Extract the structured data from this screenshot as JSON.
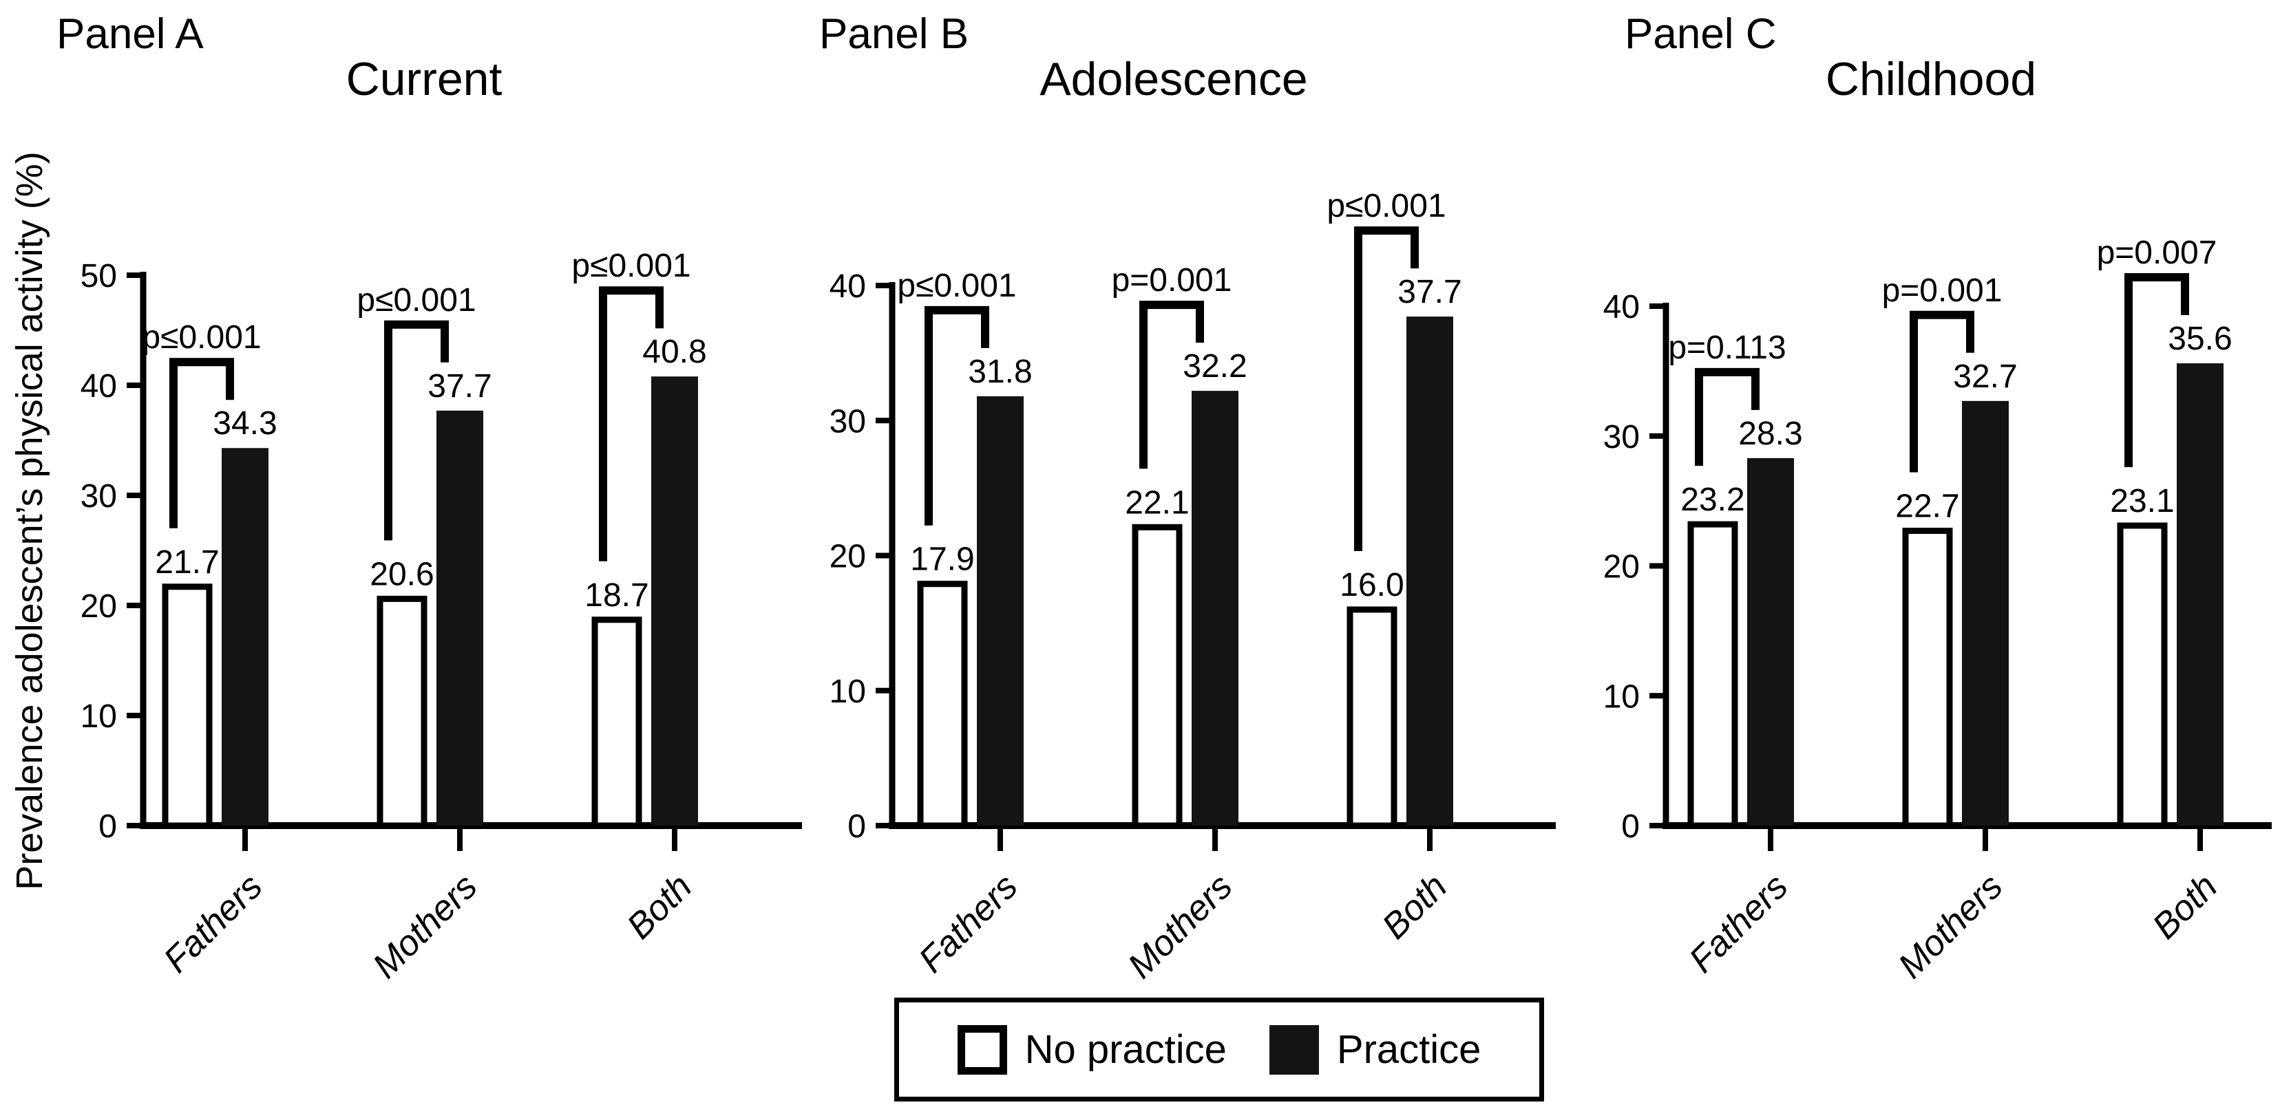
{
  "colors": {
    "ink": "#000000",
    "bar_fill": "#141414",
    "bar_empty_fill": "#ffffff",
    "background": "#ffffff"
  },
  "y_axis_label": "Prevalence adolescent’s physical activity (%)",
  "legend": {
    "no_practice_label": "No practice",
    "practice_label": "Practice"
  },
  "chart_data": [
    {
      "type": "bar",
      "panel_label": "Panel A",
      "title": "Current",
      "ylabel": "Prevalence adolescent’s physical activity (%)",
      "ylim": [
        0,
        50
      ],
      "yticks": [
        0,
        10,
        20,
        30,
        40,
        50
      ],
      "grid": false,
      "legend_position": "bottom-center-shared",
      "categories": [
        "Fathers",
        "Mothers",
        "Both"
      ],
      "series": [
        {
          "name": "No practice",
          "fill": "#ffffff",
          "values": [
            21.7,
            20.6,
            18.7
          ],
          "labels": [
            "21.7",
            "20.6",
            "18.7"
          ]
        },
        {
          "name": "Practice",
          "fill": "#141414",
          "values": [
            34.3,
            37.7,
            40.8
          ],
          "labels": [
            "34.3",
            "37.7",
            "40.8"
          ]
        }
      ],
      "p_values": [
        "p≤0.001",
        "p≤0.001",
        "p≤0.001"
      ]
    },
    {
      "type": "bar",
      "panel_label": "Panel B",
      "title": "Adolescence",
      "ylabel": "Prevalence adolescent’s physical activity (%)",
      "ylim": [
        0,
        40
      ],
      "yticks": [
        0,
        10,
        20,
        30,
        40
      ],
      "grid": false,
      "legend_position": "bottom-center-shared",
      "categories": [
        "Fathers",
        "Mothers",
        "Both"
      ],
      "series": [
        {
          "name": "No practice",
          "fill": "#ffffff",
          "values": [
            17.9,
            22.1,
            16.0
          ],
          "labels": [
            "17.9",
            "22.1",
            "16.0"
          ]
        },
        {
          "name": "Practice",
          "fill": "#141414",
          "values": [
            31.8,
            32.2,
            37.7
          ],
          "labels": [
            "31.8",
            "32.2",
            "37.7"
          ]
        }
      ],
      "p_values": [
        "p≤0.001",
        "p=0.001",
        "p≤0.001"
      ]
    },
    {
      "type": "bar",
      "panel_label": "Panel C",
      "title": "Childhood",
      "ylabel": "Prevalence adolescent’s physical activity (%)",
      "ylim": [
        0,
        40
      ],
      "yticks": [
        0,
        10,
        20,
        30,
        40
      ],
      "grid": false,
      "legend_position": "bottom-center-shared",
      "categories": [
        "Fathers",
        "Mothers",
        "Both"
      ],
      "series": [
        {
          "name": "No practice",
          "fill": "#ffffff",
          "values": [
            23.2,
            22.7,
            23.1
          ],
          "labels": [
            "23.2",
            "22.7",
            "23.1"
          ]
        },
        {
          "name": "Practice",
          "fill": "#141414",
          "values": [
            28.3,
            32.7,
            35.6
          ],
          "labels": [
            "28.3",
            "32.7",
            "35.6"
          ]
        }
      ],
      "p_values": [
        "p=0.113",
        "p=0.001",
        "p=0.007"
      ]
    }
  ]
}
